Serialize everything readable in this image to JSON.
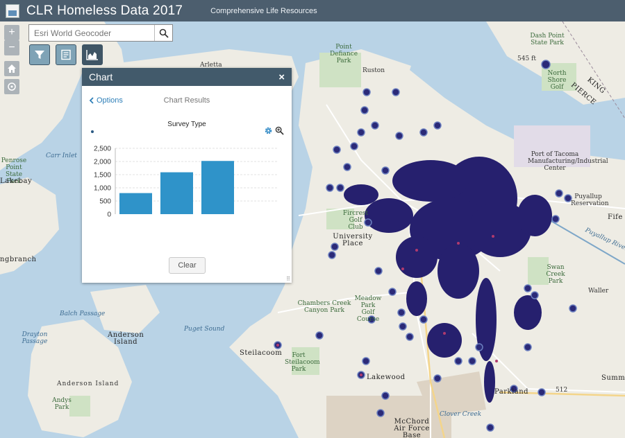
{
  "header": {
    "title": "CLR Homeless Data 2017",
    "subtitle": "Comprehensive Life Resources"
  },
  "search": {
    "placeholder": "Esri World Geocoder"
  },
  "map_controls": {
    "zoom_in": "+",
    "zoom_out": "−"
  },
  "panel": {
    "title": "Chart",
    "close": "×",
    "options_label": "Options",
    "results_label": "Chart Results",
    "clear_label": "Clear"
  },
  "chart_data": {
    "type": "bar",
    "title": "Survey Type",
    "categories": [
      "",
      "",
      ""
    ],
    "values": [
      800,
      1590,
      2020
    ],
    "ylim": [
      0,
      2500
    ],
    "yticks": [
      "0",
      "500",
      "1,000",
      "1,500",
      "2,000",
      "2,500"
    ],
    "grid": true,
    "color": "#2f93c9"
  },
  "map_labels": [
    "Ruston",
    "Point Defiance Park",
    "Arletta",
    "Dash Point State Park",
    "545 ft",
    "North Shore Golf",
    "KING",
    "PIERCE",
    "Port of Tacoma Manufacturing/Industrial Center",
    "Carr Inlet",
    "Penrose Point State Park",
    "Lakebay",
    "Fircrest Golf Club",
    "University Place",
    "Puyallup Reservation",
    "Fife",
    "Puyallup River",
    "Swan Creek Park",
    "Waller",
    "ngbranch",
    "Balch Passage",
    "Chambers Creek Canyon Park",
    "Meadow Park Golf Course",
    "Drayton Passage",
    "Anderson Island",
    "Puget Sound",
    "Steilacoom",
    "Fort Steilacoom Park",
    "Lakewood",
    "Summi",
    "Anderson Island",
    "Andys Park",
    "Parkland",
    "512",
    "Clover Creek",
    "McChord Air Force Base"
  ]
}
